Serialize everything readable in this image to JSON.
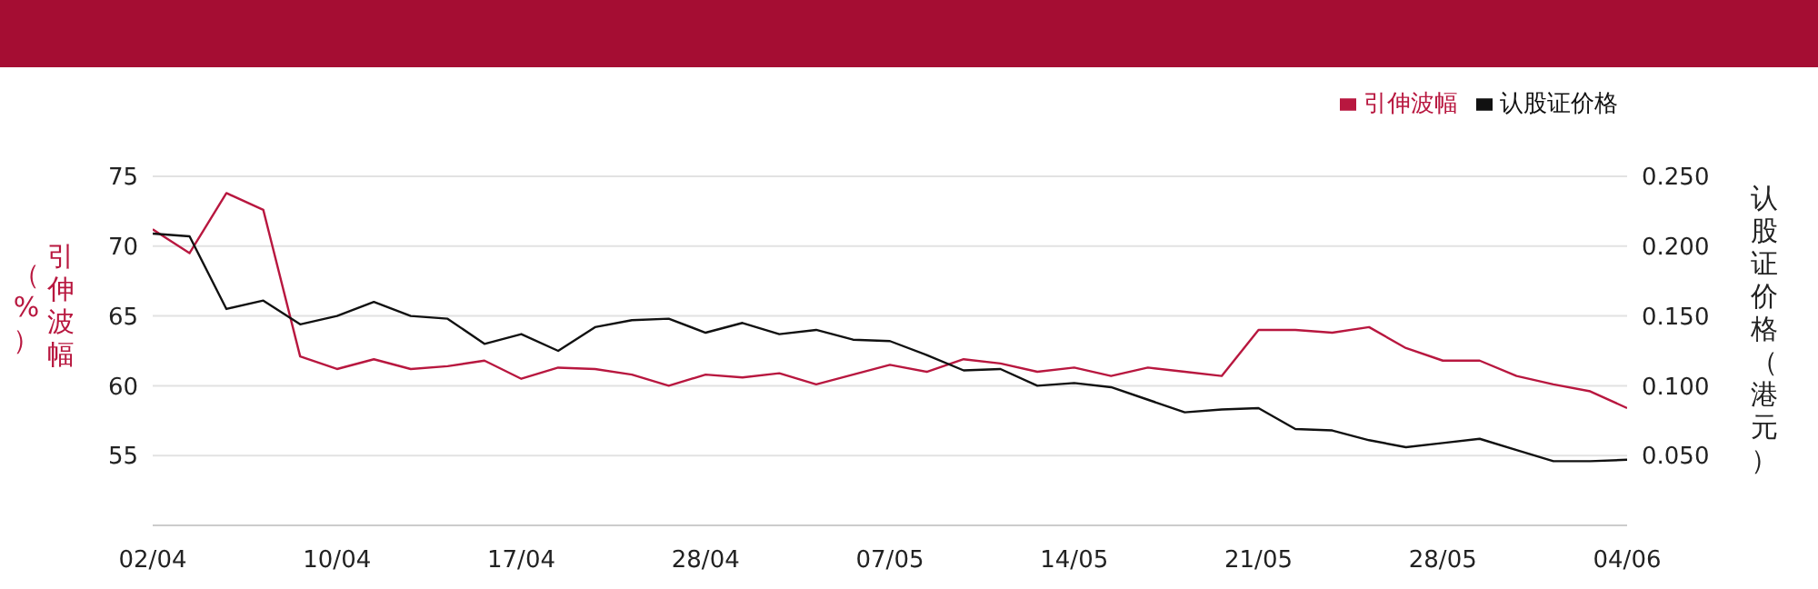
{
  "chart_data": {
    "type": "line",
    "ylabel": "引伸波幅（%）",
    "y2label": "认股证价格（港元）",
    "categories": [
      "02/04",
      null,
      null,
      null,
      null,
      "10/04",
      null,
      null,
      null,
      null,
      "17/04",
      null,
      null,
      null,
      null,
      "28/04",
      null,
      null,
      null,
      null,
      "07/05",
      null,
      null,
      null,
      null,
      "14/05",
      null,
      null,
      null,
      null,
      "21/05",
      null,
      null,
      null,
      null,
      "28/05",
      null,
      null,
      null,
      null,
      "04/06"
    ],
    "series": [
      {
        "name": "引伸波幅",
        "color": "#b8173f",
        "values": [
          71.2,
          69.5,
          73.8,
          72.6,
          62.1,
          61.2,
          61.9,
          61.2,
          61.4,
          61.8,
          60.5,
          61.3,
          61.2,
          60.8,
          60.0,
          60.8,
          60.6,
          60.9,
          60.1,
          60.8,
          61.5,
          61.0,
          61.9,
          61.6,
          61.0,
          61.3,
          60.7,
          61.3,
          61.0,
          60.7,
          64.0,
          64.0,
          63.8,
          64.2,
          62.7,
          61.8,
          61.8,
          60.7,
          60.1,
          59.6,
          58.4
        ]
      },
      {
        "name": "认股证价格",
        "color": "#111111",
        "axis": "y2",
        "values": [
          0.209,
          0.207,
          0.155,
          0.161,
          0.144,
          0.15,
          0.16,
          0.15,
          0.148,
          0.13,
          0.137,
          0.125,
          0.142,
          0.147,
          0.148,
          0.138,
          0.145,
          0.137,
          0.14,
          0.133,
          0.132,
          0.122,
          0.111,
          0.112,
          0.1,
          0.102,
          0.099,
          0.09,
          0.081,
          0.083,
          0.084,
          0.069,
          0.068,
          0.061,
          0.056,
          0.059,
          0.062,
          0.054,
          0.046,
          0.046,
          0.047
        ]
      }
    ],
    "ylim": [
      50,
      75
    ],
    "yticks": [
      55,
      60,
      65,
      70,
      75
    ],
    "y2lim": [
      0,
      0.25
    ],
    "y2ticks": [
      {
        "value": 0.05,
        "label": "0.050"
      },
      {
        "value": 0.1,
        "label": "0.100"
      },
      {
        "value": 0.15,
        "label": "0.150"
      },
      {
        "value": 0.2,
        "label": "0.200"
      },
      {
        "value": 0.25,
        "label": "0.250"
      }
    ],
    "grid": "y",
    "legend": "top right",
    "marker": "none",
    "line_style": "solid"
  }
}
